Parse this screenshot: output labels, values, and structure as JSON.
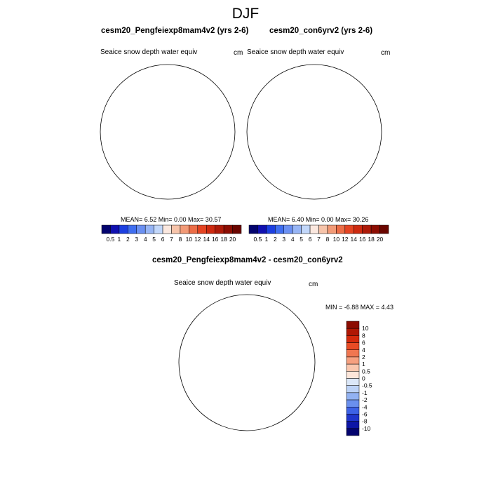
{
  "season_title": "DJF",
  "panel1": {
    "title": "cesm20_Pengfeiexp8mam4v2 (yrs 2-6)",
    "variable": "Seaice snow depth water equiv",
    "units": "cm",
    "stats": "MEAN=   6.52  Min=   0.00  Max=  30.57"
  },
  "panel2": {
    "title": "cesm20_con6yrv2 (yrs 2-6)",
    "variable": "Seaice snow depth water equiv",
    "units": "cm",
    "stats": "MEAN=   6.40  Min=   0.00  Max=  30.26"
  },
  "panel3": {
    "title": "cesm20_Pengfeiexp8mam4v2 - cesm20_con6yrv2",
    "variable": "Seaice snow depth water equiv",
    "units": "cm",
    "stats": "MIN =  -6.88 MAX =   4.43"
  },
  "colorbar_top": {
    "labels": [
      "0.5",
      "1",
      "2",
      "3",
      "4",
      "5",
      "6",
      "7",
      "8",
      "10",
      "12",
      "14",
      "16",
      "18",
      "20"
    ],
    "colors": [
      "#03046e",
      "#1010b0",
      "#1c3fe0",
      "#3f6ef0",
      "#6b90f2",
      "#97b5f5",
      "#c2d7fa",
      "#fbe8df",
      "#f7c4aa",
      "#f29a77",
      "#ec6d47",
      "#e44422",
      "#cd2a10",
      "#ad1a08",
      "#8c0d02",
      "#6a0500"
    ]
  },
  "colorbar_diff": {
    "labels": [
      "10",
      "8",
      "6",
      "4",
      "2",
      "1",
      "0.5",
      "0",
      "-0.5",
      "-1",
      "-2",
      "-4",
      "-6",
      "-8",
      "-10"
    ],
    "colors": [
      "#8c0d02",
      "#b01804",
      "#d42a0c",
      "#e84b24",
      "#f07650",
      "#f6a07f",
      "#fac7ae",
      "#fde6da",
      "#dbe7f8",
      "#bcd2f6",
      "#92b2f2",
      "#6a90ee",
      "#3d62e6",
      "#1f35cc",
      "#0d15a6",
      "#03036e"
    ]
  }
}
